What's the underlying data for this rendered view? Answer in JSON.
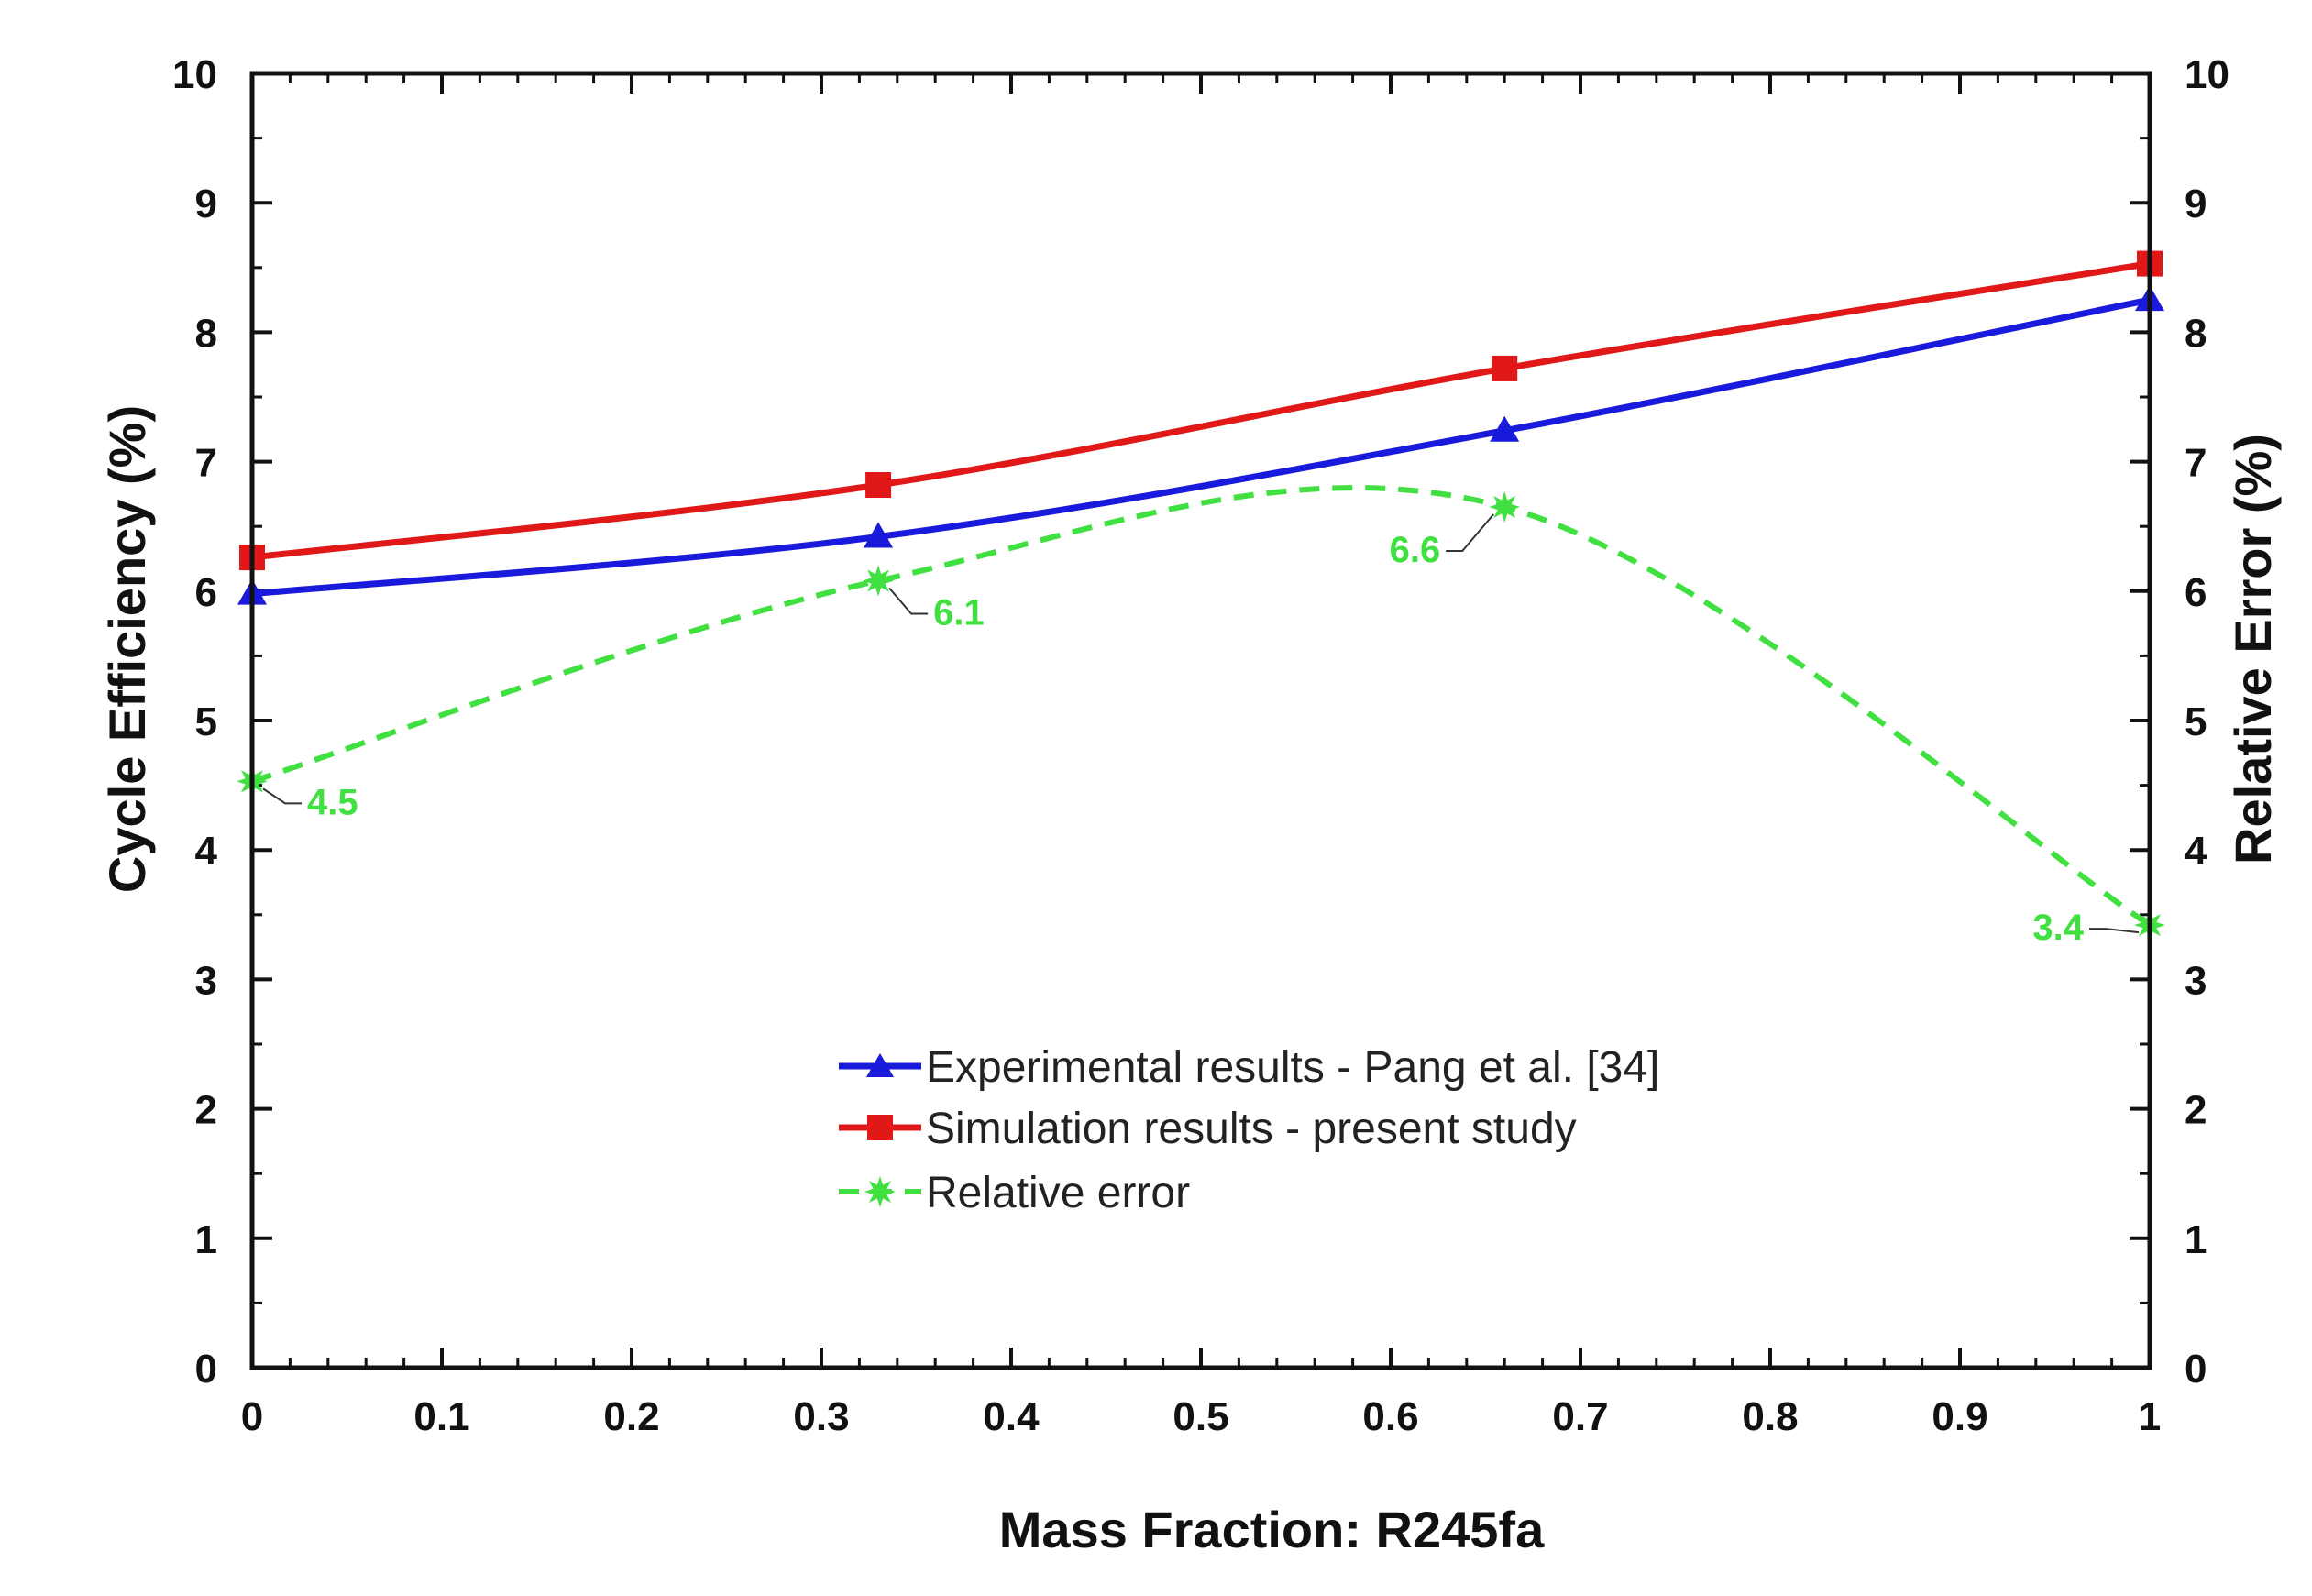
{
  "colors": {
    "experimental": "#1a1adc",
    "simulation": "#e01818",
    "relative_error": "#3fe03f",
    "axis": "#111111",
    "background": "#ffffff"
  },
  "chart_data": {
    "type": "line",
    "xlabel": "Mass Fraction: R245fa",
    "ylabel": "Cycle Efficiency (%)",
    "y2label": "Relative Error (%)",
    "xlim": [
      0,
      1
    ],
    "ylim": [
      0,
      10
    ],
    "y2lim": [
      0,
      10
    ],
    "x_ticks": [
      "0",
      "0.1",
      "0.2",
      "0.3",
      "0.4",
      "0.5",
      "0.6",
      "0.7",
      "0.8",
      "0.9",
      "1"
    ],
    "y_ticks": [
      "0",
      "1",
      "2",
      "3",
      "4",
      "5",
      "6",
      "7",
      "8",
      "9",
      "10"
    ],
    "y2_ticks": [
      "0",
      "1",
      "2",
      "3",
      "4",
      "5",
      "6",
      "7",
      "8",
      "9",
      "10"
    ],
    "grid": false,
    "legend_position": "lower-center",
    "series": [
      {
        "name": "Experimental results - Pang et al. [34]",
        "axis": "left",
        "marker": "triangle",
        "line": "solid",
        "x": [
          0,
          0.33,
          0.66,
          1
        ],
        "y": [
          5.98,
          6.42,
          7.24,
          8.25
        ]
      },
      {
        "name": "Simulation results - present study",
        "axis": "left",
        "marker": "square",
        "line": "solid",
        "x": [
          0,
          0.33,
          0.66,
          1
        ],
        "y": [
          6.26,
          6.82,
          7.72,
          8.53
        ]
      },
      {
        "name": "Relative error",
        "axis": "right",
        "marker": "star",
        "line": "dashed",
        "x": [
          0,
          0.33,
          0.66,
          1
        ],
        "y": [
          4.53,
          6.08,
          6.65,
          3.42
        ]
      }
    ],
    "annotations": [
      {
        "text": "4.5",
        "x": 0,
        "y": 4.53
      },
      {
        "text": "6.1",
        "x": 0.33,
        "y": 6.08
      },
      {
        "text": "6.6",
        "x": 0.66,
        "y": 6.65
      },
      {
        "text": "3.4",
        "x": 1,
        "y": 3.42
      }
    ]
  }
}
